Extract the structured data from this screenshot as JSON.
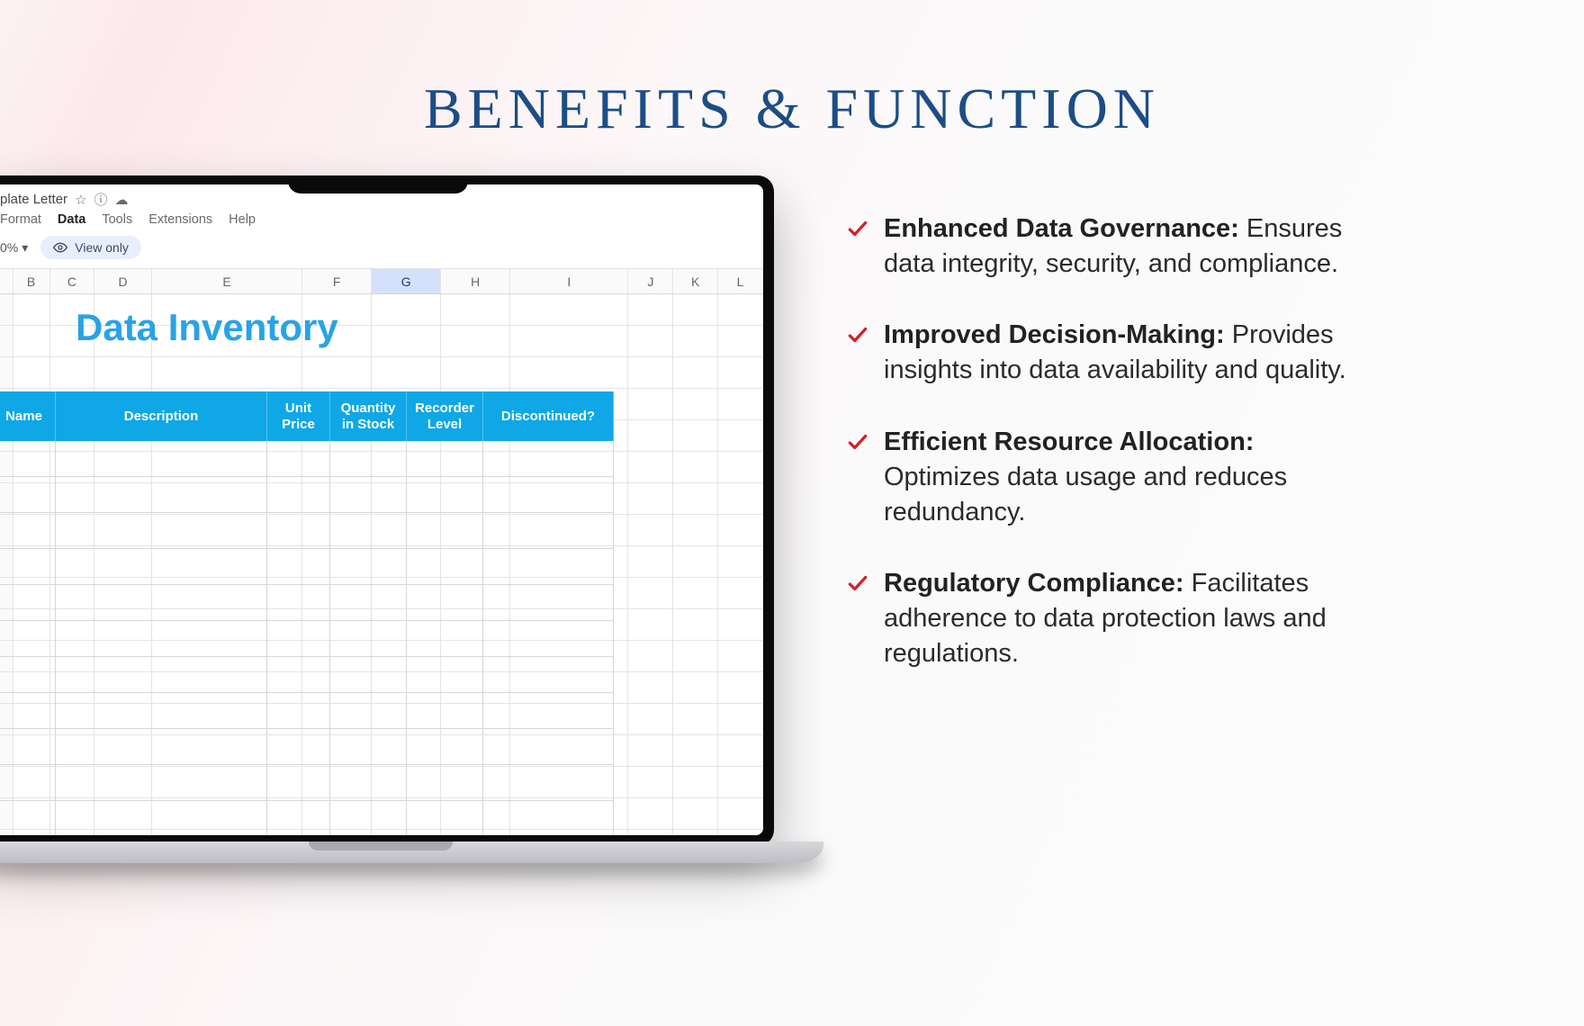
{
  "heading": "BENEFITS & FUNCTION",
  "colors": {
    "heading": "#1c4d85",
    "check": "#d4202a",
    "spreadsheet_title": "#29a3e6",
    "table_header_bg": "#0fa7e6",
    "body_text": "#2b2b2b",
    "view_only_bg": "#e8eefb"
  },
  "benefits": [
    {
      "title": "Enhanced Data Governance:",
      "desc": " Ensures data integrity, security, and compliance."
    },
    {
      "title": "Improved Decision-Making:",
      "desc": " Provides insights into data availability and quality."
    },
    {
      "title": "Efficient Resource Allocation:",
      "desc": " Optimizes data usage and reduces redundancy."
    },
    {
      "title": "Regulatory Compliance:",
      "desc": " Facilitates adherence to data protection laws and regulations."
    }
  ],
  "spreadsheet": {
    "doc_title_fragment": "plate Letter",
    "menus": [
      "Format",
      "Data",
      "Tools",
      "Extensions",
      "Help"
    ],
    "active_menu_index": 1,
    "zoom": "0%",
    "view_only": "View only",
    "column_letters": [
      "B",
      "C",
      "D",
      "E",
      "F",
      "G",
      "H",
      "I",
      "J",
      "K",
      "L"
    ],
    "selected_col_index": 5,
    "sheet_title": "Data Inventory",
    "table_headers": [
      "Name",
      "Description",
      "Unit Price",
      "Quantity in Stock",
      "Recorder Level",
      "Discontinued?"
    ],
    "empty_data_row_count": 12
  }
}
